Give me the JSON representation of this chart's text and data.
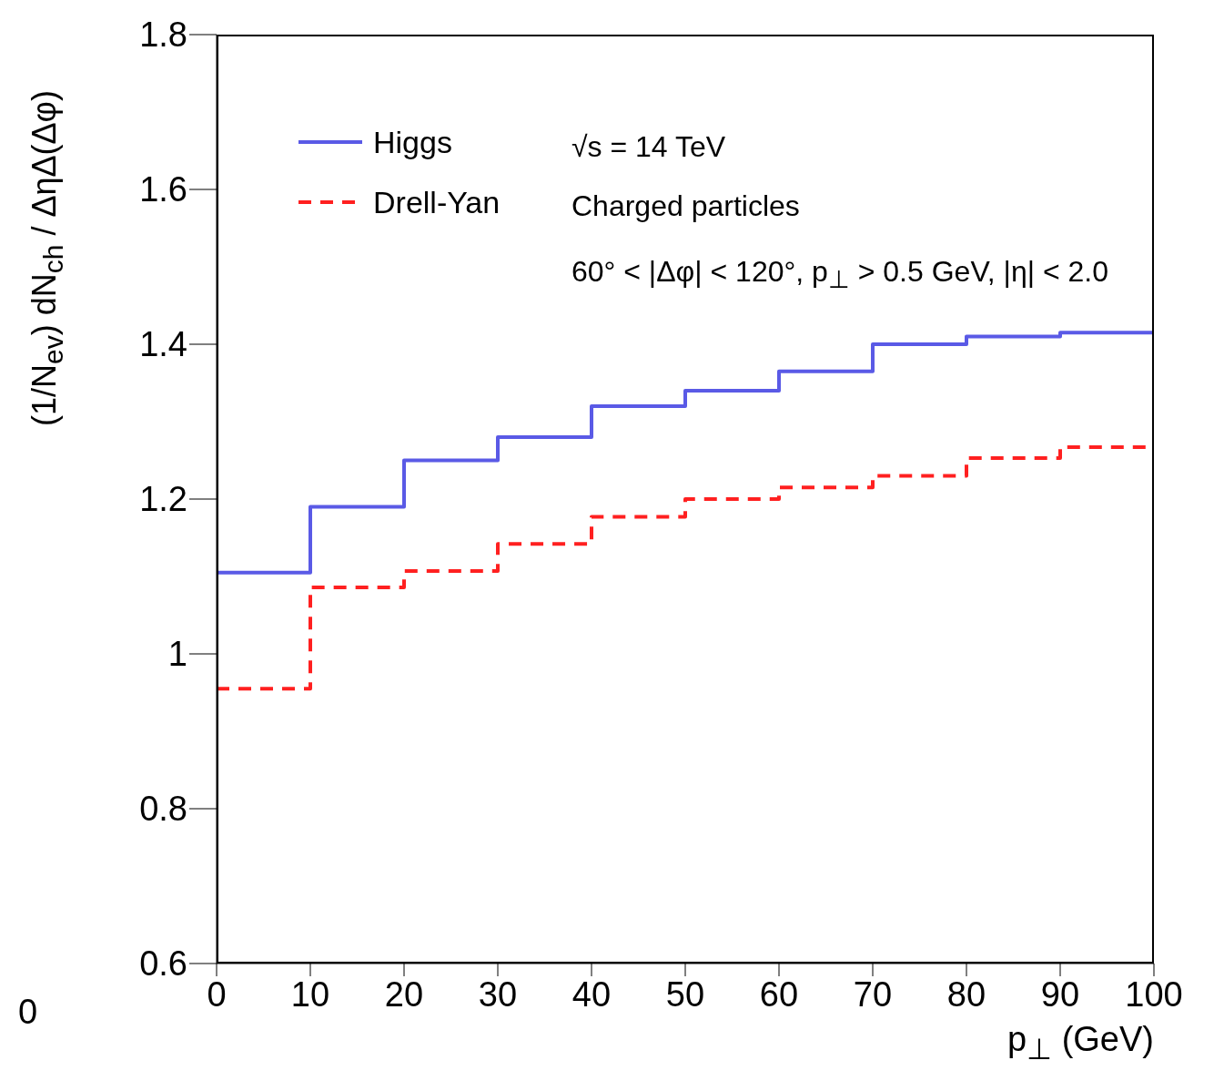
{
  "chart_data": {
    "type": "histogram",
    "xlabel": "p$_{⊥}$ (GeV)",
    "ylabel": "(1/N$_{ev}$) dN$_{ch}$ / ΔηΔ(Δφ)",
    "annotations": [
      "√s = 14 TeV",
      "Charged particles",
      "60° < |Δφ| < 120°, p$_{⊥}$ > 0.5 GeV, |η| < 2.0",
      "0"
    ],
    "bins": [
      0,
      10,
      20,
      30,
      40,
      50,
      60,
      70,
      80,
      90,
      100
    ],
    "series": [
      {
        "name": "Higgs",
        "color": "#5a5ae6",
        "line_style": "solid",
        "values": [
          1.105,
          1.19,
          1.25,
          1.28,
          1.32,
          1.34,
          1.365,
          1.4,
          1.41,
          1.415
        ]
      },
      {
        "name": "Drell-Yan",
        "color": "#ff2020",
        "line_style": "dashed",
        "values": [
          0.955,
          1.086,
          1.107,
          1.142,
          1.177,
          1.2,
          1.215,
          1.23,
          1.253,
          1.267
        ]
      }
    ],
    "xlim": [
      0,
      100
    ],
    "xticks": [
      0,
      10,
      20,
      30,
      40,
      50,
      60,
      70,
      80,
      90,
      100
    ],
    "ylim": [
      0.6,
      1.8
    ],
    "yticks": [
      0.6,
      0.8,
      1,
      1.2,
      1.4,
      1.6,
      1.8
    ],
    "grid": false,
    "legend": "top left",
    "marker": "none"
  }
}
